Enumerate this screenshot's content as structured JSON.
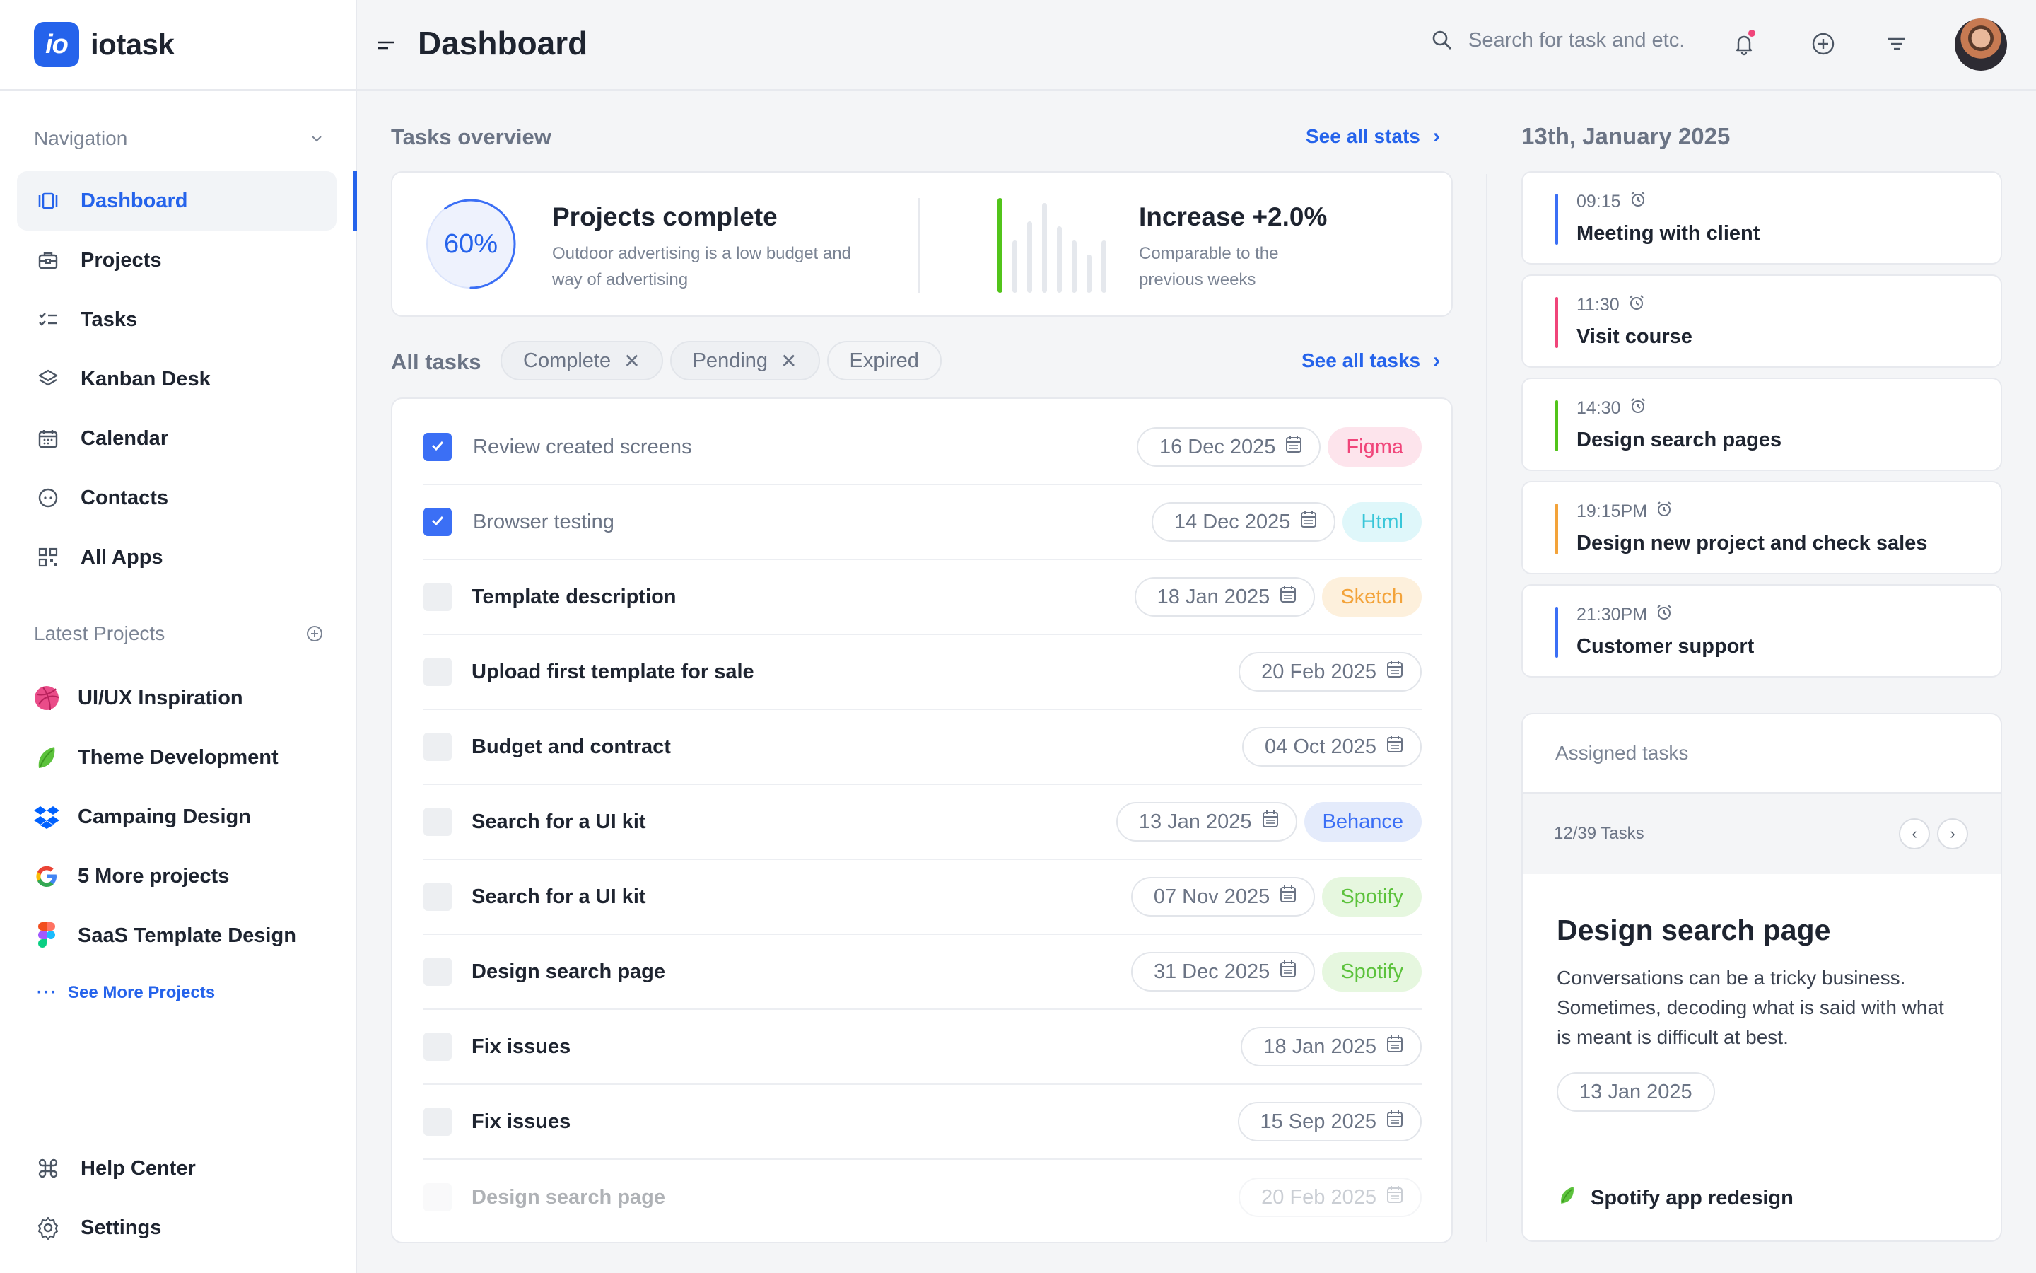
{
  "brand": {
    "logo_text": "io",
    "name": "iotask"
  },
  "topbar": {
    "title": "Dashboard",
    "search_placeholder": "Search for task and etc."
  },
  "sidebar": {
    "nav_heading": "Navigation",
    "nav": [
      {
        "label": "Dashboard",
        "icon": "dashboard-icon",
        "active": true
      },
      {
        "label": "Projects",
        "icon": "briefcase-icon"
      },
      {
        "label": "Tasks",
        "icon": "checklist-icon"
      },
      {
        "label": "Kanban Desk",
        "icon": "layers-icon"
      },
      {
        "label": "Calendar",
        "icon": "calendar-icon"
      },
      {
        "label": "Contacts",
        "icon": "contacts-icon"
      },
      {
        "label": "All Apps",
        "icon": "apps-grid-icon"
      }
    ],
    "projects_heading": "Latest Projects",
    "projects": [
      {
        "label": "UI/UX Inspiration",
        "icon": "dribbble-icon"
      },
      {
        "label": "Theme Development",
        "icon": "leaf-icon"
      },
      {
        "label": "Campaing Design",
        "icon": "dropbox-icon"
      },
      {
        "label": "5 More projects",
        "icon": "google-icon"
      },
      {
        "label": "SaaS Template Design",
        "icon": "figma-icon"
      }
    ],
    "see_more": "See More Projects",
    "bottom": [
      {
        "label": "Help Center",
        "icon": "command-icon"
      },
      {
        "label": "Settings",
        "icon": "gear-icon"
      }
    ]
  },
  "overview": {
    "heading": "Tasks overview",
    "see_all": "See all stats",
    "progress_value": "60%",
    "progress_fraction": 0.6,
    "complete_title": "Projects complete",
    "complete_desc": "Outdoor advertising is a low budget and way of advertising",
    "increase_title": "Increase +2.0%",
    "increase_desc": "Comparable to the previous weeks",
    "bars_relative": [
      1.0,
      0.55,
      0.75,
      0.95,
      0.7,
      0.55,
      0.4,
      0.55
    ],
    "accent_color": "#52c41a"
  },
  "tasks": {
    "heading": "All tasks",
    "see_all": "See all tasks",
    "filters": [
      {
        "label": "Complete",
        "removable": true
      },
      {
        "label": "Pending",
        "removable": true
      },
      {
        "label": "Expired",
        "removable": false
      }
    ],
    "items": [
      {
        "name": "Review created screens",
        "date": "16 Dec 2025",
        "tag": "Figma",
        "tag_bg": "#fde4ec",
        "tag_fg": "#f0457a",
        "done": true
      },
      {
        "name": "Browser testing",
        "date": "14 Dec 2025",
        "tag": "Html",
        "tag_bg": "#dff7fa",
        "tag_fg": "#38c6d8",
        "done": true
      },
      {
        "name": "Template description",
        "date": "18 Jan 2025",
        "tag": "Sketch",
        "tag_bg": "#fdf0dc",
        "tag_fg": "#f3a33a",
        "done": false
      },
      {
        "name": "Upload first template for sale",
        "date": "20 Feb 2025",
        "tag": "",
        "done": false
      },
      {
        "name": "Budget and contract",
        "date": "04 Oct 2025",
        "tag": "",
        "done": false
      },
      {
        "name": "Search for a UI kit",
        "date": "13 Jan 2025",
        "tag": "Behance",
        "tag_bg": "#e4ebfb",
        "tag_fg": "#3b6ff5",
        "done": false
      },
      {
        "name": "Search for a UI kit",
        "date": "07 Nov 2025",
        "tag": "Spotify",
        "tag_bg": "#e6f7df",
        "tag_fg": "#5cc23c",
        "done": false
      },
      {
        "name": "Design search page",
        "date": "31 Dec 2025",
        "tag": "Spotify",
        "tag_bg": "#e6f7df",
        "tag_fg": "#5cc23c",
        "done": false
      },
      {
        "name": "Fix issues",
        "date": "18 Jan 2025",
        "tag": "",
        "done": false
      },
      {
        "name": "Fix issues",
        "date": "15 Sep 2025",
        "tag": "",
        "done": false
      },
      {
        "name": "Design search page",
        "date": "20 Feb 2025",
        "tag": "",
        "done": false,
        "faded": true
      }
    ]
  },
  "schedule": {
    "date": "13th, January 2025",
    "events": [
      {
        "time": "09:15",
        "title": "Meeting with client",
        "color": "#3b6ff5"
      },
      {
        "time": "11:30",
        "title": "Visit course",
        "color": "#f0457a"
      },
      {
        "time": "14:30",
        "title": "Design search pages",
        "color": "#52c41a"
      },
      {
        "time": "19:15PM",
        "title": "Design new project and check sales",
        "color": "#f3a33a"
      },
      {
        "time": "21:30PM",
        "title": "Customer support",
        "color": "#3b6ff5"
      }
    ]
  },
  "assigned": {
    "heading": "Assigned tasks",
    "count": "12/39 Tasks",
    "title": "Design search page",
    "description": "Conversations can be a tricky business. Sometimes, decoding what is said with what is meant is difficult at best.",
    "date": "13 Jan 2025",
    "project": "Spotify app redesign"
  }
}
